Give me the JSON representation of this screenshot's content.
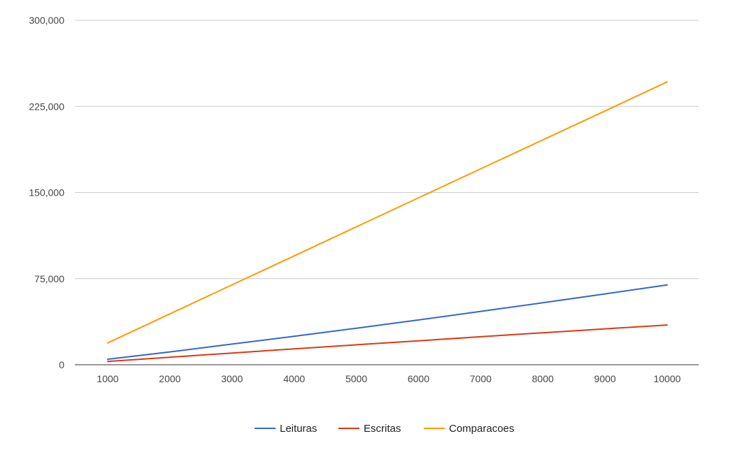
{
  "chart_data": {
    "type": "line",
    "title": "",
    "xlabel": "",
    "ylabel": "",
    "x": [
      1000,
      2000,
      3000,
      4000,
      5000,
      6000,
      7000,
      8000,
      9000,
      10000
    ],
    "x_tick_labels": [
      "1000",
      "2000",
      "3000",
      "4000",
      "5000",
      "6000",
      "7000",
      "8000",
      "9000",
      "10000"
    ],
    "ylim": [
      0,
      300000
    ],
    "y_ticks": [
      0,
      75000,
      150000,
      225000,
      300000
    ],
    "y_tick_labels": [
      "0",
      "75,000",
      "150,000",
      "225,000",
      "300,000"
    ],
    "grid": true,
    "legend_position": "bottom",
    "series": [
      {
        "name": "Leituras",
        "color": "#3366cc",
        "values": [
          4800,
          11200,
          18000,
          24800,
          31800,
          39000,
          46500,
          54000,
          61700,
          69500
        ]
      },
      {
        "name": "Escritas",
        "color": "#dc3912",
        "values": [
          2900,
          6600,
          10200,
          13800,
          17400,
          20900,
          24400,
          27900,
          31300,
          34600
        ]
      },
      {
        "name": "Comparacoes",
        "color": "#ff9900",
        "values": [
          19000,
          44300,
          69600,
          94800,
          120100,
          145400,
          170600,
          195800,
          221000,
          246300
        ]
      }
    ]
  }
}
